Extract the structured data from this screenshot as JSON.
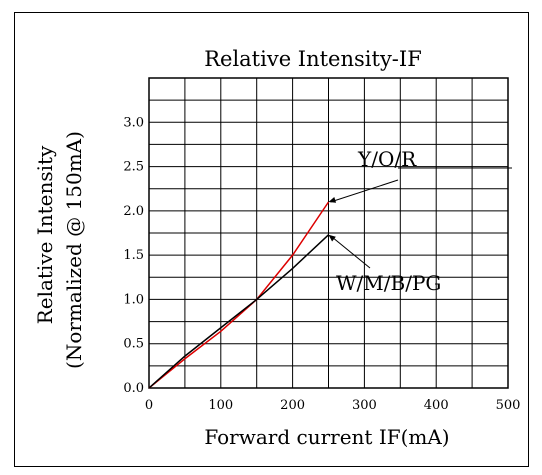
{
  "chart_data": {
    "type": "line",
    "title": "Relative Intensity-IF",
    "xlabel": "Forward current IF(mA)",
    "ylabel": "Relative Intensity",
    "ylabel2": "(Normalized @ 150mA)",
    "xlim": [
      0,
      500
    ],
    "ylim": [
      0,
      3.5
    ],
    "x_ticks": [
      0,
      100,
      200,
      300,
      400,
      500
    ],
    "y_ticks": [
      0.0,
      0.5,
      1.0,
      1.5,
      2.0,
      2.5,
      3.0
    ],
    "x_tick_labels": [
      "0",
      "100",
      "200",
      "300",
      "400",
      "500"
    ],
    "y_tick_labels": [
      "0.0",
      "0.5",
      "1.0",
      "1.5",
      "2.0",
      "2.5",
      "3.0"
    ],
    "x_grid_step": 50,
    "y_grid_step": 0.25,
    "grid": true,
    "series": [
      {
        "name": "Y/O/R",
        "color": "#dd0000",
        "x": [
          0,
          50,
          100,
          150,
          200,
          250
        ],
        "y": [
          0.0,
          0.33,
          0.64,
          1.0,
          1.5,
          2.1
        ]
      },
      {
        "name": "W/M/B/PG",
        "color": "#000000",
        "x": [
          0,
          50,
          100,
          150,
          200,
          250
        ],
        "y": [
          0.0,
          0.36,
          0.68,
          1.0,
          1.35,
          1.73
        ]
      }
    ],
    "annotations": [
      {
        "text": "Y/O/R",
        "series": 0,
        "x": 250,
        "y": 2.1
      },
      {
        "text": "W/M/B/PG",
        "series": 1,
        "x": 250,
        "y": 1.73
      }
    ]
  }
}
